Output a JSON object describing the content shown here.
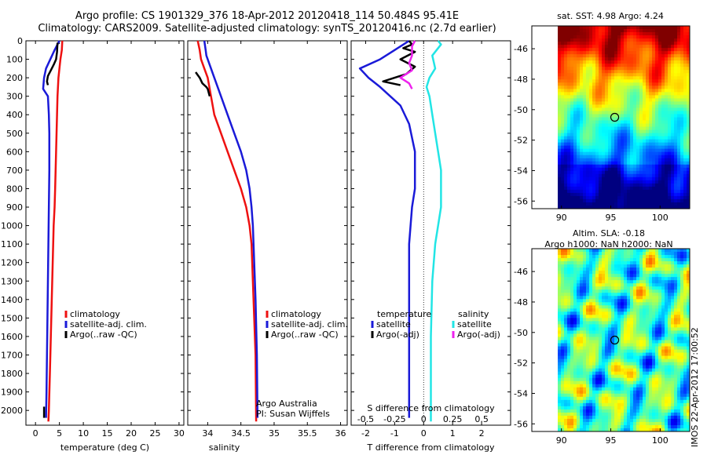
{
  "header": {
    "line1": "Argo profile: CS 1901329_376 18-Apr-2012 20120418_114 50.484S 95.41E",
    "line2": "Climatology: CARS2009. Satellite-adjusted climatology: synTS_20120416.nc (2.7d earlier)"
  },
  "footer_stamp": "IMOS 22-Apr-2012 17:00:52",
  "colors": {
    "climatology": "#ee1111",
    "satellite": "#1a1ad8",
    "argo": "#000000",
    "sal_sat": "#22e5e5",
    "sal_argo": "#ee22ee"
  },
  "chart_data": [
    {
      "type": "line",
      "xlabel": "temperature (deg C)",
      "xlim": [
        -2,
        31
      ],
      "xticks": [
        0,
        5,
        10,
        15,
        20,
        25,
        30
      ],
      "ylim": [
        0,
        2080
      ],
      "yticks": [
        0,
        100,
        200,
        300,
        400,
        500,
        600,
        700,
        800,
        900,
        1000,
        1100,
        1200,
        1300,
        1400,
        1500,
        1600,
        1700,
        1800,
        1900,
        2000
      ],
      "legend": [
        "climatology",
        "satellite-adj. clim.",
        "Argo(..raw -QC)"
      ],
      "series": [
        {
          "name": "climatology",
          "color": "#ee1111",
          "values": [
            [
              5.6,
              0
            ],
            [
              5.5,
              50
            ],
            [
              5.2,
              100
            ],
            [
              4.8,
              200
            ],
            [
              4.6,
              300
            ],
            [
              4.5,
              400
            ],
            [
              4.4,
              500
            ],
            [
              4.3,
              600
            ],
            [
              4.2,
              700
            ],
            [
              4.1,
              800
            ],
            [
              4.0,
              900
            ],
            [
              3.8,
              1000
            ],
            [
              3.6,
              1200
            ],
            [
              3.4,
              1400
            ],
            [
              3.2,
              1600
            ],
            [
              3.0,
              1800
            ],
            [
              2.8,
              2000
            ],
            [
              2.7,
              2060
            ]
          ]
        },
        {
          "name": "satellite-adj. clim.",
          "color": "#1a1ad8",
          "values": [
            [
              5.0,
              0
            ],
            [
              4.0,
              50
            ],
            [
              2.2,
              150
            ],
            [
              1.8,
              200
            ],
            [
              1.6,
              260
            ],
            [
              2.6,
              300
            ],
            [
              2.8,
              400
            ],
            [
              2.9,
              500
            ],
            [
              2.9,
              700
            ],
            [
              2.8,
              900
            ],
            [
              2.7,
              1100
            ],
            [
              2.6,
              1300
            ],
            [
              2.5,
              1500
            ],
            [
              2.4,
              1700
            ],
            [
              2.3,
              1900
            ],
            [
              2.2,
              2040
            ]
          ]
        },
        {
          "name": "Argo(..raw -QC)",
          "color": "#000000",
          "values": [
            [
              4.6,
              10
            ],
            [
              4.5,
              60
            ],
            [
              4.3,
              100
            ],
            [
              3.8,
              130
            ],
            [
              3.2,
              160
            ],
            [
              2.6,
              190
            ],
            [
              2.4,
              220
            ],
            [
              2.6,
              240
            ]
          ]
        },
        {
          "name": "Argo(..raw -QC) deep",
          "color": "#000000",
          "values": [
            [
              1.8,
              1980
            ],
            [
              1.8,
              2040
            ]
          ]
        }
      ]
    },
    {
      "type": "line",
      "xlabel": "salinity",
      "xlim": [
        33.7,
        36.1
      ],
      "xticks": [
        34,
        34.5,
        35,
        35.5,
        36
      ],
      "ylim": [
        0,
        2080
      ],
      "legend": [
        "climatology",
        "satellite-adj. clim.",
        "Argo(..raw -QC)"
      ],
      "annotation": [
        "Argo Australia",
        "PI: Susan Wijffels"
      ],
      "series": [
        {
          "name": "climatology",
          "color": "#ee1111",
          "values": [
            [
              33.85,
              0
            ],
            [
              33.88,
              50
            ],
            [
              33.9,
              100
            ],
            [
              33.95,
              150
            ],
            [
              34.0,
              200
            ],
            [
              34.05,
              300
            ],
            [
              34.1,
              400
            ],
            [
              34.2,
              500
            ],
            [
              34.3,
              600
            ],
            [
              34.4,
              700
            ],
            [
              34.5,
              800
            ],
            [
              34.58,
              900
            ],
            [
              34.63,
              1000
            ],
            [
              34.66,
              1100
            ],
            [
              34.68,
              1300
            ],
            [
              34.7,
              1500
            ],
            [
              34.72,
              1700
            ],
            [
              34.73,
              2060
            ]
          ]
        },
        {
          "name": "satellite-adj. clim.",
          "color": "#1a1ad8",
          "values": [
            [
              33.95,
              0
            ],
            [
              33.97,
              50
            ],
            [
              33.98,
              80
            ],
            [
              34.02,
              120
            ],
            [
              34.1,
              200
            ],
            [
              34.2,
              300
            ],
            [
              34.3,
              400
            ],
            [
              34.4,
              500
            ],
            [
              34.5,
              600
            ],
            [
              34.58,
              700
            ],
            [
              34.63,
              800
            ],
            [
              34.66,
              900
            ],
            [
              34.68,
              1000
            ],
            [
              34.7,
              1200
            ],
            [
              34.72,
              1400
            ],
            [
              34.74,
              1700
            ],
            [
              34.75,
              2040
            ]
          ]
        },
        {
          "name": "Argo(..raw -QC)",
          "color": "#000000",
          "values": [
            [
              33.82,
              170
            ],
            [
              33.88,
              200
            ],
            [
              33.92,
              230
            ],
            [
              33.95,
              240
            ],
            [
              33.98,
              250
            ],
            [
              34.0,
              260
            ],
            [
              34.03,
              300
            ]
          ]
        }
      ]
    },
    {
      "type": "line",
      "xlabel": "T difference from climatology",
      "xlabel_top": "S difference from climatology",
      "xlim": [
        -2.5,
        3.0
      ],
      "xticks": [
        -2,
        -1,
        0,
        1,
        2
      ],
      "xticks_top": [
        "-0.5",
        "-0.25",
        "0",
        "0.25",
        "0.5"
      ],
      "ylim": [
        0,
        2080
      ],
      "legend_titles": [
        "temperature",
        "salinity"
      ],
      "legend": [
        "satellite",
        "Argo(-adj)",
        "satellite",
        "Argo(-adj)"
      ],
      "series": [
        {
          "name": "temperature satellite",
          "color": "#1a1ad8",
          "values": [
            [
              -0.5,
              0
            ],
            [
              -1.0,
              50
            ],
            [
              -1.5,
              100
            ],
            [
              -2.2,
              150
            ],
            [
              -1.9,
              200
            ],
            [
              -1.5,
              250
            ],
            [
              -0.8,
              350
            ],
            [
              -0.5,
              450
            ],
            [
              -0.3,
              600
            ],
            [
              -0.3,
              800
            ],
            [
              -0.4,
              900
            ],
            [
              -0.5,
              1100
            ],
            [
              -0.5,
              1500
            ],
            [
              -0.5,
              2040
            ]
          ]
        },
        {
          "name": "temperature Argo(-adj)",
          "color": "#000000",
          "values": [
            [
              -0.5,
              0
            ],
            [
              -0.4,
              20
            ],
            [
              -0.7,
              40
            ],
            [
              -0.3,
              60
            ],
            [
              -0.8,
              100
            ],
            [
              -0.3,
              140
            ],
            [
              -0.6,
              180
            ],
            [
              -1.0,
              200
            ],
            [
              -1.4,
              220
            ],
            [
              -0.8,
              240
            ]
          ]
        },
        {
          "name": "salinity satellite",
          "color": "#22e5e5",
          "values": [
            [
              0.5,
              0
            ],
            [
              0.6,
              20
            ],
            [
              0.3,
              80
            ],
            [
              0.4,
              150
            ],
            [
              0.2,
              200
            ],
            [
              0.1,
              250
            ],
            [
              0.2,
              300
            ],
            [
              0.3,
              400
            ],
            [
              0.4,
              500
            ],
            [
              0.5,
              600
            ],
            [
              0.6,
              700
            ],
            [
              0.6,
              900
            ],
            [
              0.4,
              1100
            ],
            [
              0.3,
              1300
            ],
            [
              0.25,
              1600
            ],
            [
              0.25,
              2060
            ]
          ]
        },
        {
          "name": "salinity Argo(-adj)",
          "color": "#ee22ee",
          "values": [
            [
              -0.3,
              0
            ],
            [
              -0.4,
              30
            ],
            [
              -0.4,
              80
            ],
            [
              -0.5,
              120
            ],
            [
              -0.4,
              160
            ],
            [
              -0.8,
              200
            ],
            [
              -0.5,
              230
            ],
            [
              -0.4,
              260
            ]
          ]
        }
      ]
    },
    {
      "type": "heatmap",
      "title": "sat. SST: 4.98 Argo: 4.24",
      "xlim": [
        87,
        103
      ],
      "xticks": [
        90,
        95,
        100
      ],
      "ylim": [
        -56.5,
        -44.5
      ],
      "yticks": [
        -46,
        -48,
        -50,
        -52,
        -54,
        -56
      ],
      "marker": {
        "lon": 95.4,
        "lat": -50.5
      }
    },
    {
      "type": "heatmap",
      "title": "Altim. SLA: -0.18",
      "subtitle": "Argo h1000: NaN h2000: NaN",
      "xlim": [
        87,
        103
      ],
      "xticks": [
        90,
        95,
        100
      ],
      "ylim": [
        -56.5,
        -44.5
      ],
      "yticks": [
        -46,
        -48,
        -50,
        -52,
        -54,
        -56
      ],
      "marker": {
        "lon": 95.4,
        "lat": -50.5
      }
    }
  ]
}
